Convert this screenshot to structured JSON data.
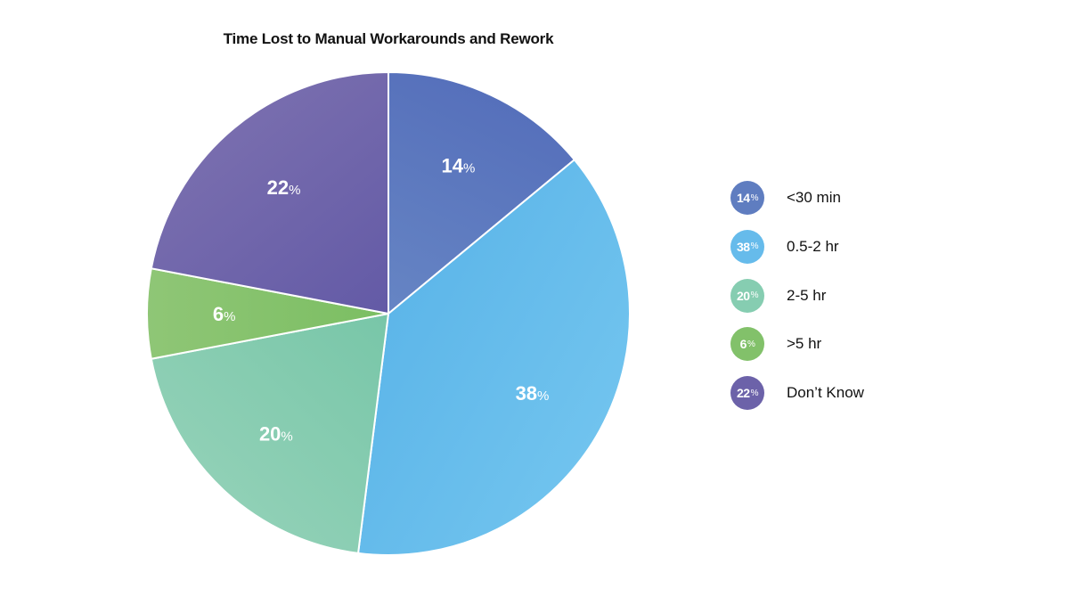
{
  "title": "Time Lost to Manual Workarounds and Rework",
  "chart_data": {
    "type": "pie",
    "title": "Time Lost to Manual Workarounds and Rework",
    "categories": [
      "<30 min",
      "0.5-2 hr",
      "2-5 hr",
      ">5 hr",
      "Don’t Know"
    ],
    "values": [
      14,
      38,
      20,
      6,
      22
    ],
    "unit": "%",
    "start_angle": "12 o'clock",
    "direction": "clockwise",
    "colors": [
      "#5f7dc0",
      "#66bbeb",
      "#86cdb1",
      "#82c16a",
      "#6c62a9"
    ],
    "legend_position": "right",
    "data_labels": [
      "14%",
      "38%",
      "20%",
      "6%",
      "22%"
    ]
  },
  "slices": [
    {
      "value": 14,
      "num": "14",
      "pct": "%",
      "label": "<30 min",
      "c1": "#6685c4",
      "c2": "#5670bb"
    },
    {
      "value": 38,
      "num": "38",
      "pct": "%",
      "label": "0.5-2 hr",
      "c1": "#5db6e9",
      "c2": "#70c3ee"
    },
    {
      "value": 20,
      "num": "20",
      "pct": "%",
      "label": "2-5 hr",
      "c1": "#78c6a8",
      "c2": "#90d0b6"
    },
    {
      "value": 6,
      "num": "6",
      "pct": "%",
      "label": ">5 hr",
      "c1": "#7bbe62",
      "c2": "#8fc676"
    },
    {
      "value": 22,
      "num": "22",
      "pct": "%",
      "label": "Don’t Know",
      "c1": "#635aa6",
      "c2": "#786dae"
    }
  ],
  "legend": [
    {
      "num": "14",
      "pct": "%",
      "label": "<30 min",
      "color": "#5f7dc0"
    },
    {
      "num": "38",
      "pct": "%",
      "label": "0.5-2 hr",
      "color": "#66bbeb"
    },
    {
      "num": "20",
      "pct": "%",
      "label": "2-5 hr",
      "color": "#86cdb1"
    },
    {
      "num": "6",
      "pct": "%",
      "label": ">5 hr",
      "color": "#82c16a"
    },
    {
      "num": "22",
      "pct": "%",
      "label": "Don’t Know",
      "color": "#6c62a9"
    }
  ]
}
